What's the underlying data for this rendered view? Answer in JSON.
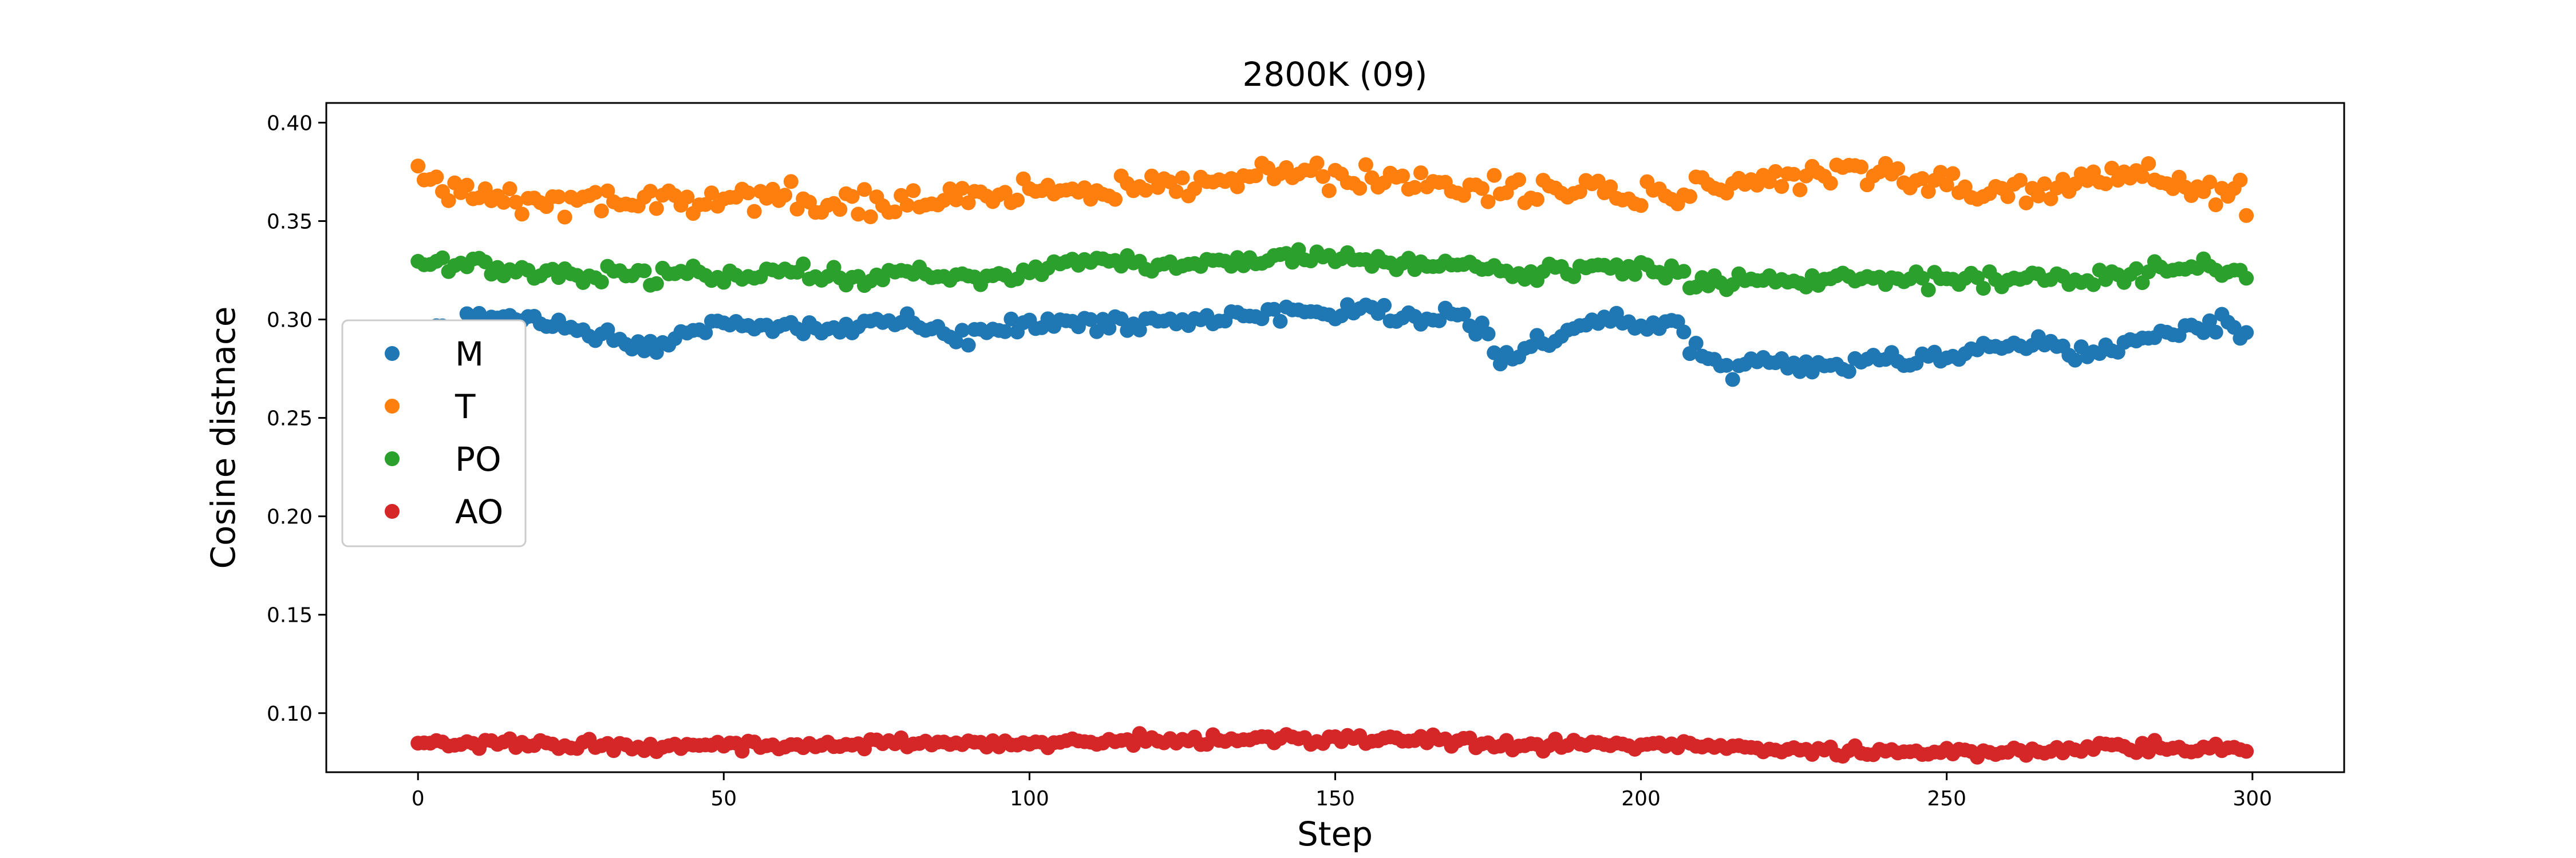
{
  "chart_data": {
    "type": "scatter",
    "title": "2800K (09)",
    "xlabel": "Step",
    "ylabel": "Cosine distnace",
    "xlim": [
      -15,
      315
    ],
    "ylim": [
      0.07,
      0.41
    ],
    "xticks": [
      0,
      50,
      100,
      150,
      200,
      250,
      300
    ],
    "yticks": [
      0.1,
      0.15,
      0.2,
      0.25,
      0.3,
      0.35,
      0.4
    ],
    "grid": false,
    "legend_position": "center-left",
    "x_range": [
      0,
      299
    ],
    "series": [
      {
        "name": "M",
        "color": "#1f77b4",
        "anchors_x": [
          0,
          10,
          20,
          30,
          38,
          45,
          50,
          60,
          70,
          80,
          88,
          95,
          100,
          110,
          120,
          130,
          140,
          150,
          155,
          160,
          165,
          170,
          174,
          177,
          180,
          185,
          190,
          195,
          200,
          205,
          210,
          215,
          220,
          230,
          240,
          250,
          255,
          260,
          265,
          270,
          275,
          280,
          290,
          295,
          299
        ],
        "anchors_y": [
          0.293,
          0.3,
          0.3,
          0.293,
          0.285,
          0.295,
          0.297,
          0.296,
          0.294,
          0.299,
          0.291,
          0.295,
          0.3,
          0.298,
          0.299,
          0.3,
          0.304,
          0.303,
          0.307,
          0.3,
          0.3,
          0.302,
          0.295,
          0.278,
          0.282,
          0.29,
          0.296,
          0.3,
          0.296,
          0.297,
          0.282,
          0.275,
          0.28,
          0.276,
          0.28,
          0.281,
          0.286,
          0.287,
          0.289,
          0.283,
          0.284,
          0.289,
          0.295,
          0.3,
          0.292
        ],
        "noise": 0.004
      },
      {
        "name": "T",
        "color": "#ff7f0e",
        "anchors_x": [
          0,
          10,
          20,
          30,
          40,
          50,
          60,
          70,
          80,
          90,
          100,
          110,
          120,
          130,
          140,
          150,
          160,
          170,
          180,
          190,
          200,
          205,
          210,
          220,
          230,
          240,
          250,
          255,
          260,
          270,
          280,
          290,
          299
        ],
        "anchors_y": [
          0.372,
          0.363,
          0.36,
          0.358,
          0.363,
          0.36,
          0.365,
          0.36,
          0.358,
          0.362,
          0.365,
          0.364,
          0.367,
          0.37,
          0.372,
          0.373,
          0.368,
          0.368,
          0.367,
          0.366,
          0.363,
          0.358,
          0.366,
          0.369,
          0.372,
          0.374,
          0.372,
          0.365,
          0.363,
          0.368,
          0.375,
          0.365,
          0.36
        ],
        "noise": 0.007
      },
      {
        "name": "PO",
        "color": "#2ca02c",
        "anchors_x": [
          0,
          10,
          20,
          30,
          40,
          50,
          60,
          70,
          80,
          90,
          100,
          110,
          120,
          130,
          140,
          150,
          160,
          170,
          180,
          190,
          200,
          205,
          210,
          220,
          230,
          240,
          250,
          260,
          270,
          280,
          290,
          299
        ],
        "anchors_y": [
          0.328,
          0.327,
          0.325,
          0.322,
          0.322,
          0.323,
          0.325,
          0.321,
          0.324,
          0.32,
          0.326,
          0.33,
          0.328,
          0.328,
          0.33,
          0.332,
          0.328,
          0.328,
          0.322,
          0.325,
          0.327,
          0.322,
          0.318,
          0.32,
          0.32,
          0.32,
          0.32,
          0.32,
          0.32,
          0.323,
          0.327,
          0.322
        ],
        "noise": 0.004
      },
      {
        "name": "AO",
        "color": "#d62728",
        "anchors_x": [
          0,
          20,
          40,
          60,
          80,
          100,
          120,
          140,
          160,
          180,
          200,
          220,
          240,
          260,
          280,
          299
        ],
        "anchors_y": [
          0.085,
          0.084,
          0.083,
          0.084,
          0.085,
          0.085,
          0.086,
          0.087,
          0.087,
          0.083,
          0.085,
          0.082,
          0.08,
          0.08,
          0.083,
          0.082
        ],
        "noise": 0.0025
      }
    ]
  }
}
